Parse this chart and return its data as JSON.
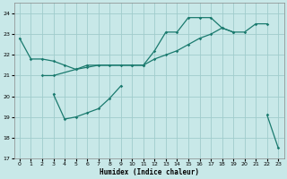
{
  "xlabel": "Humidex (Indice chaleur)",
  "line1_x": [
    0,
    1,
    2,
    3,
    4,
    5,
    6,
    7,
    8,
    9,
    10,
    11,
    12,
    13,
    14,
    15,
    16,
    17,
    18,
    19
  ],
  "line1_y": [
    22.8,
    21.8,
    21.8,
    21.7,
    21.5,
    21.3,
    21.4,
    21.5,
    21.5,
    21.5,
    21.5,
    21.5,
    22.2,
    23.1,
    23.1,
    23.8,
    23.8,
    23.8,
    23.3,
    23.1
  ],
  "line2_x": [
    2,
    3,
    5,
    6,
    10,
    11,
    12,
    13,
    14,
    15,
    16,
    17,
    18,
    19,
    20,
    21,
    22
  ],
  "line2_y": [
    21.0,
    21.0,
    21.3,
    21.5,
    21.5,
    21.5,
    21.8,
    22.0,
    22.2,
    22.5,
    22.8,
    23.0,
    23.3,
    23.1,
    23.1,
    23.5,
    23.5
  ],
  "line3_x": [
    3,
    4,
    5,
    6,
    7,
    8,
    9,
    22,
    23
  ],
  "line3_y": [
    20.1,
    18.9,
    19.0,
    19.2,
    19.4,
    19.9,
    20.5,
    19.1,
    17.5
  ],
  "line_color": "#1a7a6e",
  "bg_color": "#c8e8e8",
  "grid_color": "#a0cccc",
  "ylim": [
    17,
    24.5
  ],
  "xlim": [
    -0.5,
    23.5
  ],
  "yticks": [
    17,
    18,
    19,
    20,
    21,
    22,
    23,
    24
  ],
  "xticks": [
    0,
    1,
    2,
    3,
    4,
    5,
    6,
    7,
    8,
    9,
    10,
    11,
    12,
    13,
    14,
    15,
    16,
    17,
    18,
    19,
    20,
    21,
    22,
    23
  ]
}
